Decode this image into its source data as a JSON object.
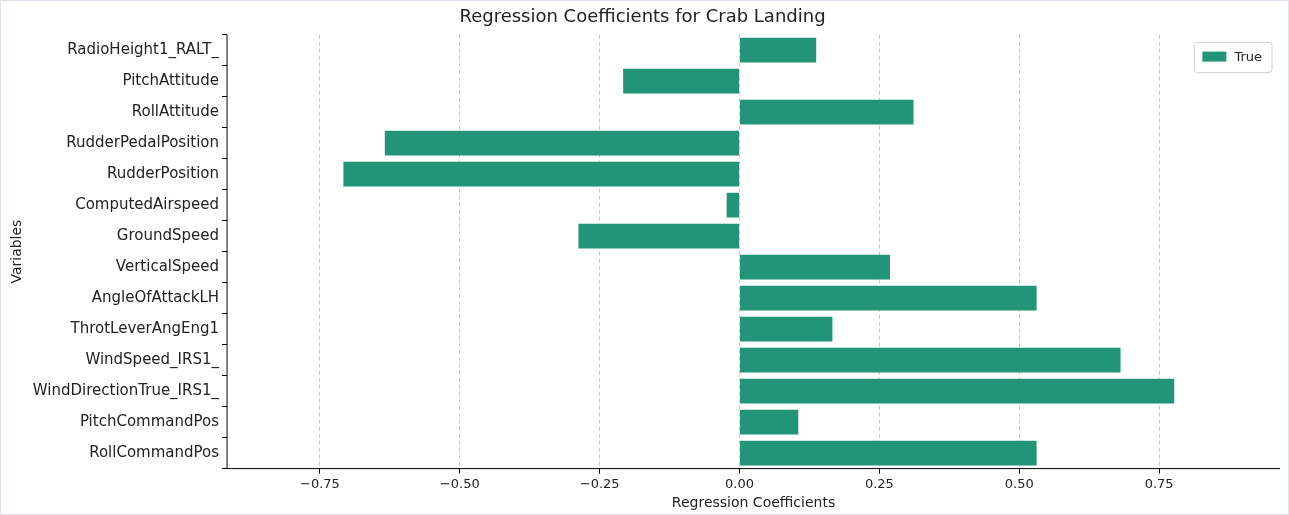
{
  "chart_data": {
    "type": "bar",
    "orientation": "horizontal",
    "title": "Regression Coefficients for Crab Landing",
    "xlabel": "Regression Coefficients",
    "ylabel": "Variables",
    "categories": [
      "RadioHeight1_RALT_",
      "PitchAttitude",
      "RollAttitude",
      "RudderPedalPosition",
      "RudderPosition",
      "ComputedAirspeed",
      "GroundSpeed",
      "VerticalSpeed",
      "AngleOfAttackLH",
      "ThrotLeverAngEng1",
      "WindSpeed_IRS1_",
      "WindDirectionTrue_IRS1_",
      "PitchCommandPos",
      "RollCommandPos"
    ],
    "series": [
      {
        "name": "True",
        "color": "#229477",
        "values": [
          0.137,
          -0.208,
          0.311,
          -0.634,
          -0.708,
          -0.023,
          -0.288,
          0.269,
          0.531,
          0.166,
          0.681,
          0.777,
          0.105,
          0.531
        ]
      }
    ],
    "xlim": [
      -0.916,
      0.966
    ],
    "xticks": [
      {
        "value": -0.75,
        "label": "−0.75"
      },
      {
        "value": -0.5,
        "label": "−0.50"
      },
      {
        "value": -0.25,
        "label": "−0.25"
      },
      {
        "value": 0,
        "label": "0.00"
      },
      {
        "value": 0.25,
        "label": "0.25"
      },
      {
        "value": 0.5,
        "label": "0.50"
      },
      {
        "value": 0.75,
        "label": "0.75"
      }
    ],
    "grid": "x",
    "legend": "top right"
  }
}
